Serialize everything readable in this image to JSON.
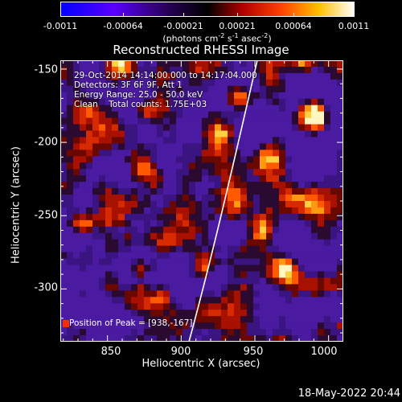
{
  "colorbar": {
    "tick_labels": [
      "-0.0011",
      "-0.00064",
      "-0.00021",
      "0.00021",
      "0.00064",
      "0.0011"
    ],
    "units_prefix": "(photons cm",
    "units_exp1": "-2",
    "units_mid": " s",
    "units_exp2": "-1",
    "units_mid2": " asec",
    "units_exp3": "-2",
    "units_suffix": ")",
    "colors": [
      "#0000ff",
      "#6a00ff",
      "#000000",
      "#ff0000",
      "#ffaa00",
      "#ffffff"
    ]
  },
  "title": "Reconstructed RHESSI Image",
  "info_lines": [
    "29-Oct-2014 14:14:00.000 to 14:17:04.000",
    "Detectors: 3F 6F 9F, Att 1",
    "Energy Range: 25.0 - 50.0 keV",
    "Clean    Total counts: 1.75E+03"
  ],
  "peak_text": "Position of Peak = [938,-167]",
  "axes": {
    "xlabel": "Heliocentric X (arcsec)",
    "ylabel": "Heliocentric Y (arcsec)",
    "xticks": [
      "850",
      "900",
      "950",
      "1000"
    ],
    "yticks": [
      "-150",
      "-200",
      "-250",
      "-300"
    ],
    "xlim": [
      818,
      1010
    ],
    "ylim": [
      -336,
      -144
    ]
  },
  "date_stamp": "18-May-2022 20:44"
}
